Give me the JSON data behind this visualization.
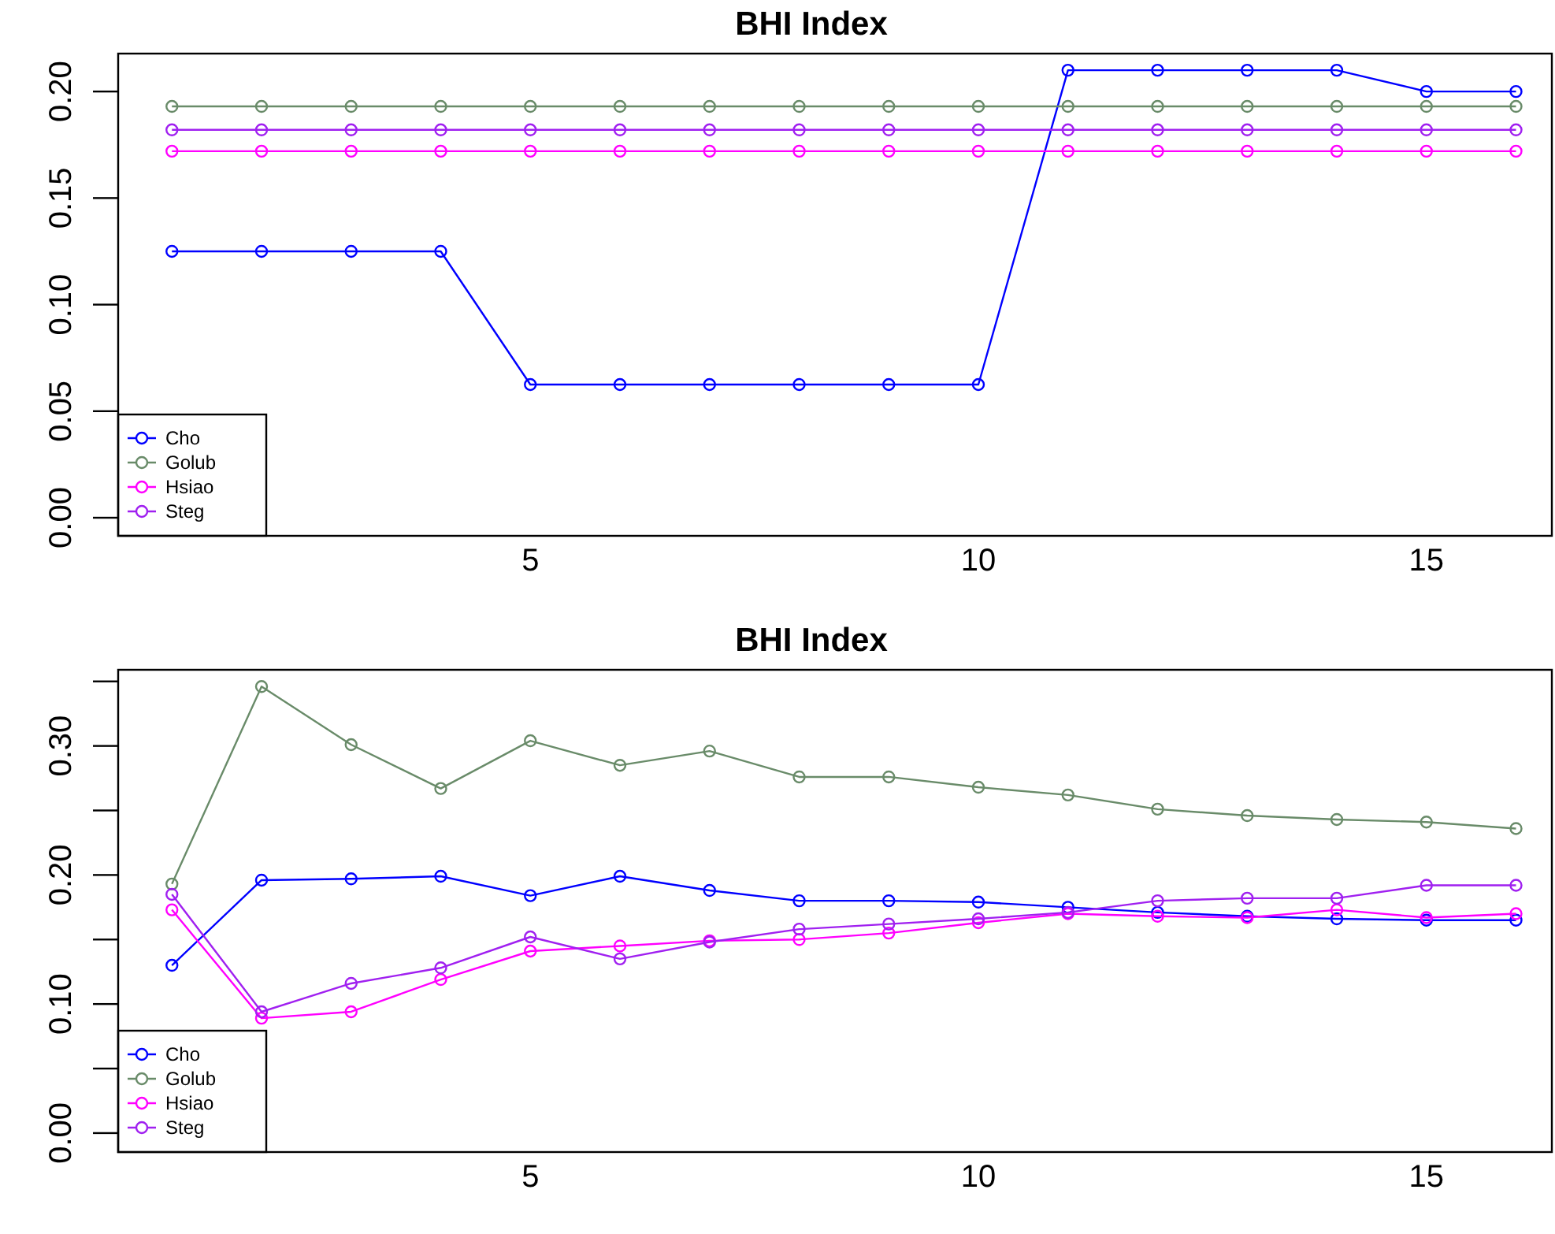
{
  "chart_data": [
    {
      "type": "line",
      "title": "BHI Index",
      "x": [
        1,
        2,
        3,
        4,
        5,
        6,
        7,
        8,
        9,
        10,
        11,
        12,
        13,
        14,
        15,
        16
      ],
      "xlim": [
        0.4,
        16.4
      ],
      "xticks": [
        5,
        10,
        15
      ],
      "ylim": [
        -0.0085,
        0.2178
      ],
      "yticks": [
        {
          "value": 0,
          "label": "0.00"
        },
        {
          "value": 0.05,
          "label": "0.05"
        },
        {
          "value": 0.1,
          "label": "0.10"
        },
        {
          "value": 0.15,
          "label": "0.15"
        },
        {
          "value": 0.2,
          "label": "0.20"
        }
      ],
      "legend": "bottom left",
      "marker": "circle",
      "series": [
        {
          "name": "Cho",
          "color": "#0000ff",
          "values": [
            0.125,
            0.125,
            0.125,
            0.125,
            0.0625,
            0.0625,
            0.0625,
            0.0625,
            0.0625,
            0.0625,
            0.21,
            0.21,
            0.21,
            0.21,
            0.2,
            0.2
          ]
        },
        {
          "name": "Golub",
          "color": "#698b69",
          "values": [
            0.193,
            0.193,
            0.193,
            0.193,
            0.193,
            0.193,
            0.193,
            0.193,
            0.193,
            0.193,
            0.193,
            0.193,
            0.193,
            0.193,
            0.193,
            0.193
          ]
        },
        {
          "name": "Hsiao",
          "color": "#ff00ff",
          "values": [
            0.172,
            0.172,
            0.172,
            0.172,
            0.172,
            0.172,
            0.172,
            0.172,
            0.172,
            0.172,
            0.172,
            0.172,
            0.172,
            0.172,
            0.172,
            0.172
          ]
        },
        {
          "name": "Steg",
          "color": "#a020f0",
          "values": [
            0.182,
            0.182,
            0.182,
            0.182,
            0.182,
            0.182,
            0.182,
            0.182,
            0.182,
            0.182,
            0.182,
            0.182,
            0.182,
            0.182,
            0.182,
            0.182
          ]
        }
      ]
    },
    {
      "type": "line",
      "title": "BHI Index",
      "x": [
        1,
        2,
        3,
        4,
        5,
        6,
        7,
        8,
        9,
        10,
        11,
        12,
        13,
        14,
        15,
        16
      ],
      "xlim": [
        0.4,
        16.4
      ],
      "xticks": [
        5,
        10,
        15
      ],
      "ylim": [
        -0.0147,
        0.359
      ],
      "yticks": [
        {
          "value": 0,
          "label": "0.00"
        },
        {
          "value": 0.05,
          "label": null
        },
        {
          "value": 0.1,
          "label": "0.10"
        },
        {
          "value": 0.15,
          "label": null
        },
        {
          "value": 0.2,
          "label": "0.20"
        },
        {
          "value": 0.25,
          "label": null
        },
        {
          "value": 0.3,
          "label": "0.30"
        },
        {
          "value": 0.35,
          "label": null
        }
      ],
      "legend": "bottom left",
      "marker": "circle",
      "series": [
        {
          "name": "Cho",
          "color": "#0000ff",
          "values": [
            0.13,
            0.196,
            0.197,
            0.199,
            0.184,
            0.199,
            0.188,
            0.18,
            0.18,
            0.179,
            0.175,
            0.171,
            0.168,
            0.166,
            0.165,
            0.165
          ]
        },
        {
          "name": "Golub",
          "color": "#698b69",
          "values": [
            0.193,
            0.346,
            0.301,
            0.267,
            0.304,
            0.285,
            0.296,
            0.276,
            0.276,
            0.268,
            0.262,
            0.251,
            0.246,
            0.243,
            0.241,
            0.236
          ]
        },
        {
          "name": "Hsiao",
          "color": "#ff00ff",
          "values": [
            0.173,
            0.089,
            0.094,
            0.119,
            0.141,
            0.145,
            0.149,
            0.15,
            0.155,
            0.163,
            0.17,
            0.168,
            0.167,
            0.173,
            0.167,
            0.17
          ]
        },
        {
          "name": "Steg",
          "color": "#a020f0",
          "values": [
            0.185,
            0.094,
            0.116,
            0.128,
            0.152,
            0.135,
            0.148,
            0.158,
            0.162,
            0.166,
            0.171,
            0.18,
            0.182,
            0.182,
            0.192,
            0.192
          ]
        }
      ]
    }
  ]
}
